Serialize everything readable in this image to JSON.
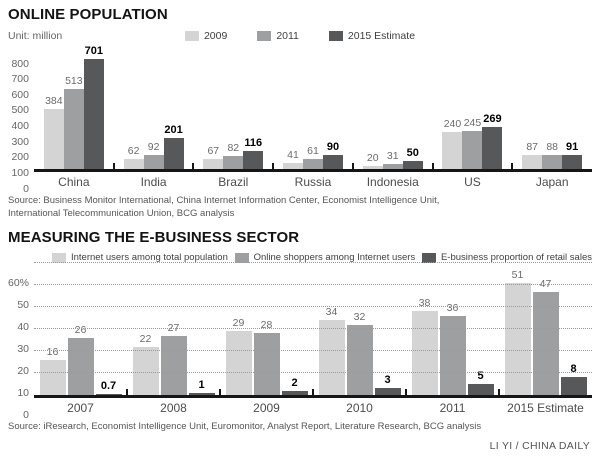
{
  "credit": "LI YI / CHINA DAILY",
  "chart_data": [
    {
      "type": "bar",
      "title": "ONLINE POPULATION",
      "unit_label": "Unit: million",
      "categories": [
        "China",
        "India",
        "Brazil",
        "Russia",
        "Indonesia",
        "US",
        "Japan"
      ],
      "series": [
        {
          "name": "2009",
          "color": "#d4d4d4",
          "values": [
            384,
            62,
            67,
            41,
            20,
            240,
            87
          ]
        },
        {
          "name": "2011",
          "color": "#9e9fa1",
          "values": [
            513,
            92,
            82,
            61,
            31,
            245,
            88
          ]
        },
        {
          "name": "2015 Estimate",
          "color": "#57585a",
          "values": [
            701,
            201,
            116,
            90,
            50,
            269,
            91
          ]
        }
      ],
      "ylim": [
        0,
        800
      ],
      "yticks": [
        0,
        100,
        200,
        300,
        400,
        500,
        600,
        700,
        800
      ],
      "ytick_labels": [
        "0",
        "100",
        "200",
        "300",
        "400",
        "500",
        "600",
        "700",
        "800"
      ],
      "grid": false,
      "legend_position": "top-center",
      "source": "Source: Business Monitor International, China Internet Information Center, Economist Intelligence Unit, International Telecommunication Union, BCG analysis"
    },
    {
      "type": "bar",
      "title": "MEASURING THE E-BUSINESS SECTOR",
      "categories": [
        "2007",
        "2008",
        "2009",
        "2010",
        "2011",
        "2015 Estimate"
      ],
      "series": [
        {
          "name": "Internet users among total population",
          "color": "#d4d4d4",
          "values": [
            16,
            22,
            29,
            34,
            38,
            51
          ]
        },
        {
          "name": "Online shoppers among Internet users",
          "color": "#9e9fa1",
          "values": [
            26,
            27,
            28,
            32,
            36,
            47
          ]
        },
        {
          "name": "E-business proportion of retail sales",
          "color": "#57585a",
          "values": [
            0.7,
            1,
            2,
            3,
            5,
            8
          ]
        }
      ],
      "ylim": [
        0,
        60
      ],
      "yticks": [
        0,
        10,
        20,
        30,
        40,
        50,
        60
      ],
      "ytick_labels": [
        "0",
        "10",
        "20",
        "30",
        "40",
        "50",
        "60%"
      ],
      "grid": true,
      "legend_position": "top-spread",
      "source": "Source: iResearch, Economist Intelligence Unit, Euromonitor, Analyst Report, Literature Research, BCG analysis"
    }
  ]
}
